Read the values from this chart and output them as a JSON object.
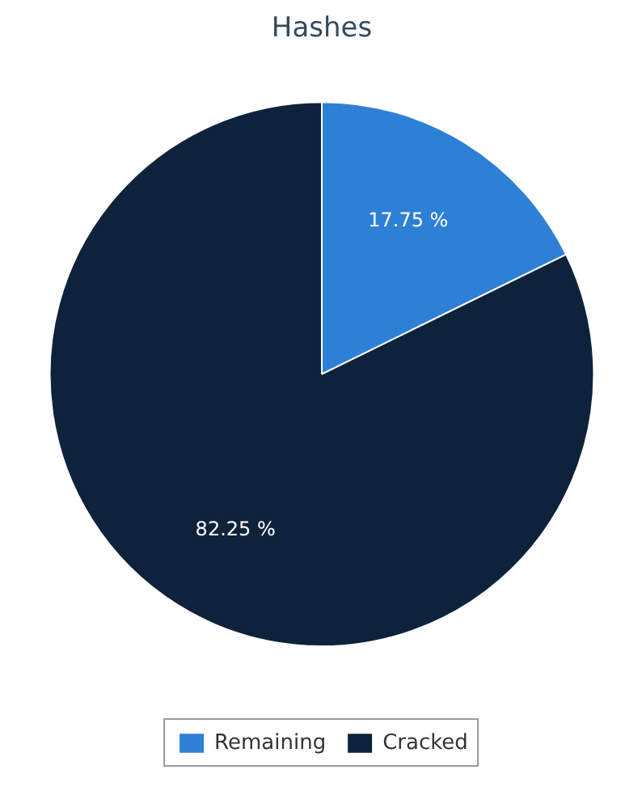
{
  "chart_data": {
    "type": "pie",
    "title": "Hashes",
    "categories": [
      "Remaining",
      "Cracked"
    ],
    "values": [
      17.75,
      82.25
    ],
    "colors": [
      "#2e80d7",
      "#0e233b"
    ],
    "value_labels": [
      "17.75 %",
      "82.25 %"
    ],
    "legend": "bottom"
  }
}
